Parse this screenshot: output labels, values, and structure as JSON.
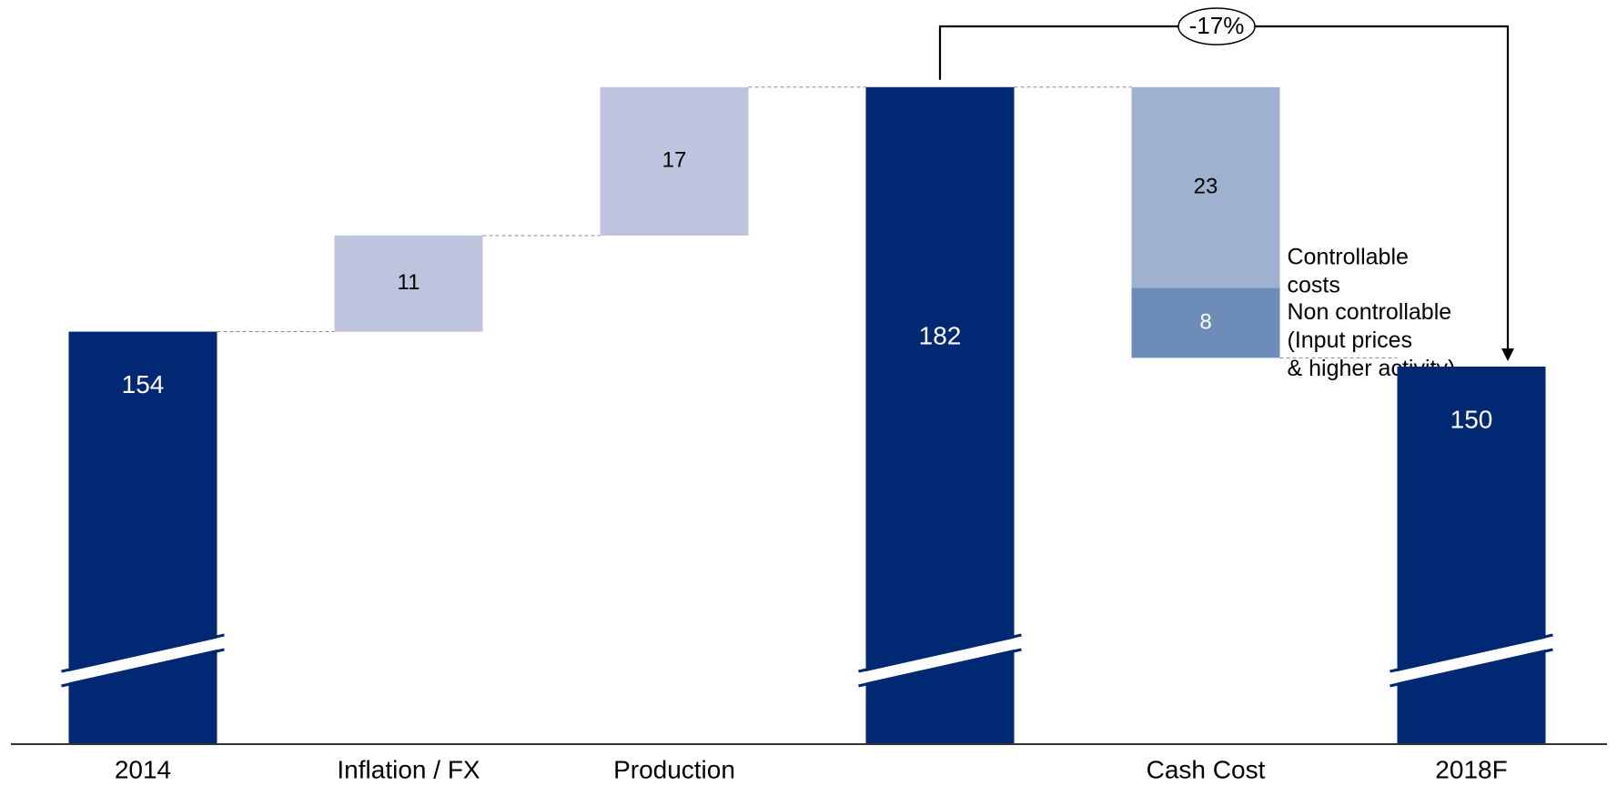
{
  "chart_data": {
    "type": "waterfall",
    "categories": [
      "2014",
      "Inflation / FX",
      "Production",
      "",
      "Cash Cost",
      "2018F"
    ],
    "bars": [
      {
        "category": "2014",
        "kind": "total",
        "value": 154,
        "label": "154",
        "broken_axis": true
      },
      {
        "category": "Inflation / FX",
        "kind": "increase",
        "value": 11,
        "label": "11"
      },
      {
        "category": "Production",
        "kind": "increase",
        "value": 17,
        "label": "17"
      },
      {
        "category": "",
        "kind": "total",
        "value": 182,
        "label": "182",
        "broken_axis": true
      },
      {
        "category": "Cash Cost",
        "kind": "decrease",
        "segments": [
          {
            "name": "Controllable costs",
            "value": 23,
            "label": "23",
            "legend_lines": [
              "Controllable",
              "costs"
            ]
          },
          {
            "name": "Non controllable (Input prices & higher activity)",
            "value": 8,
            "label": "8",
            "legend_lines": [
              "Non controllable",
              "(Input prices",
              "& higher activity)"
            ]
          }
        ]
      },
      {
        "category": "2018F",
        "kind": "total",
        "value": 150,
        "label": "150",
        "broken_axis": true
      }
    ],
    "annotation": {
      "text": "-17%",
      "from_category": "",
      "to_category": "2018F"
    },
    "colors": {
      "total": "#012873",
      "increase": "#bfc4de",
      "controllable": "#9eb1cf",
      "non_controllable": "#6e8cb8",
      "axis": "#333333",
      "connector": "#888888",
      "annotation": "#000000"
    },
    "visible_range": [
      127,
      185
    ],
    "grid": false,
    "legend": "none"
  }
}
